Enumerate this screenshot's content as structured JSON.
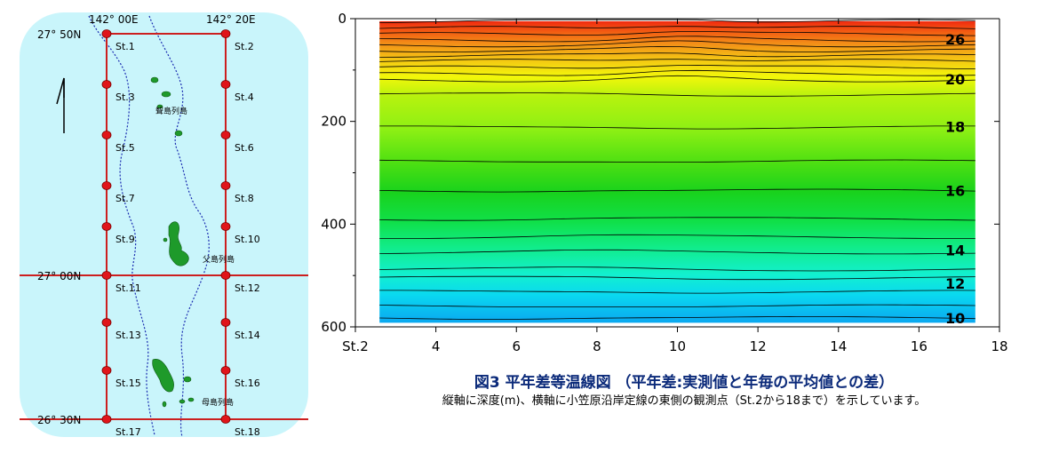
{
  "map": {
    "lon_labels": [
      "142° 00E",
      "142° 20E"
    ],
    "lat_labels": [
      "27° 50N",
      "27° 00N",
      "26° 30N"
    ],
    "stations_west": [
      "St.1",
      "St.3",
      "St.5",
      "St.7",
      "St.9",
      "St.11",
      "St.13",
      "St.15",
      "St.17"
    ],
    "stations_east": [
      "St.2",
      "St.4",
      "St.6",
      "St.8",
      "St.10",
      "St.12",
      "St.14",
      "St.16",
      "St.18"
    ],
    "island_labels": [
      "聟島列島",
      "父島列島",
      "母島列島"
    ],
    "colors": {
      "background": "#c9f5fb",
      "grid": "#cc1f1f",
      "station": "#e0151a",
      "island": "#1e9a2a",
      "depth_contour": "#1a2bb0"
    }
  },
  "chart_data": {
    "type": "heatmap",
    "xlabel": "",
    "ylabel": "",
    "x_tick_labels": [
      "St.2",
      "4",
      "6",
      "8",
      "10",
      "12",
      "14",
      "16",
      "18"
    ],
    "x_ticks": [
      2,
      4,
      6,
      8,
      10,
      12,
      14,
      16,
      18
    ],
    "xlim": [
      2,
      18
    ],
    "data_xlim": [
      2.6,
      17.4
    ],
    "y_tick_labels": [
      "0",
      "200",
      "400",
      "600"
    ],
    "y_ticks": [
      0,
      200,
      400,
      600
    ],
    "ylim": [
      600,
      0
    ],
    "y_inverted": true,
    "surface_value": 28,
    "bottom_value": 9,
    "contour_labels": [
      {
        "value": "26",
        "depth": 40
      },
      {
        "value": "20",
        "depth": 118
      },
      {
        "value": "18",
        "depth": 210
      },
      {
        "value": "16",
        "depth": 335
      },
      {
        "value": "14",
        "depth": 450
      },
      {
        "value": "12",
        "depth": 515
      },
      {
        "value": "10",
        "depth": 583
      }
    ],
    "contour_depths": [
      5,
      18,
      30,
      42,
      52,
      62,
      72,
      82,
      95,
      108,
      120,
      148,
      212,
      278,
      335,
      390,
      425,
      455,
      488,
      505,
      532,
      560,
      583
    ],
    "colors": {
      "warm": "#f02a10",
      "yellow": "#f3f70a",
      "green": "#19d21c",
      "cyan": "#12f0d0",
      "blue": "#0aa8f0"
    }
  },
  "caption": {
    "title": "図3 平年差等温線図 （平年差:実測値と年毎の平均値との差）",
    "description": "縦軸に深度(m)、横軸に小笠原沿岸定線の東側の観測点（St.2から18まで）を示しています。"
  }
}
